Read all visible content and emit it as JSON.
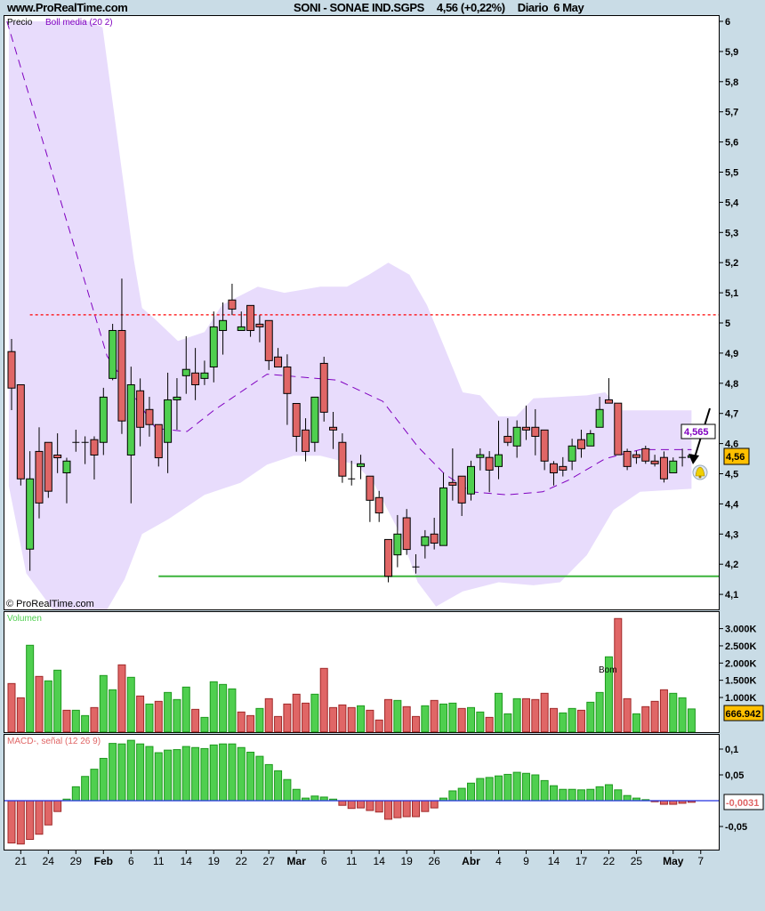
{
  "header": {
    "site": "www.ProRealTime.com",
    "instrument": "SONI - SONAE IND.SGPS",
    "quote": "4,56 (+0,22%)",
    "period": "Diario",
    "date": "6 May"
  },
  "price_pane": {
    "legend_price": "Precio",
    "legend_boll": "Boll media (20 2)",
    "copyright": "© ProRealTime.com",
    "last_price_label": "4,56",
    "boll_value_label": "4,565",
    "annotation": "Bom"
  },
  "volume_pane": {
    "title": "Volumen",
    "last_label": "666.942"
  },
  "macd_pane": {
    "title": "MACD-, señal (12 26 9)",
    "last_label": "-0,0031"
  },
  "colors": {
    "up": "#4fcf4f",
    "down": "#e06666",
    "band": "#e8dcfc",
    "boll_mid": "#8000c0",
    "resistance": "#ff0000",
    "support": "#3cb43c",
    "macd_zero": "#2030e0",
    "background": "#c9dce6",
    "badge": "#ffc000"
  },
  "icons": {
    "alert": "bell-icon",
    "arrow": "arrow-icon"
  },
  "chart_data": [
    {
      "type": "candlestick",
      "ylim": [
        4.05,
        6.02
      ],
      "y_ticks": [
        "6",
        "5,9",
        "5,8",
        "5,7",
        "5,6",
        "5,5",
        "5,4",
        "5,3",
        "5,2",
        "5,1",
        "5",
        "4,9",
        "4,8",
        "4,7",
        "4,6",
        "4,5",
        "4,4",
        "4,3",
        "4,2",
        "4,1"
      ],
      "y_tick_values": [
        6,
        5.9,
        5.8,
        5.7,
        5.6,
        5.5,
        5.4,
        5.3,
        5.2,
        5.1,
        5,
        4.9,
        4.8,
        4.7,
        4.6,
        4.5,
        4.4,
        4.3,
        4.2,
        4.1
      ],
      "x_ticks": [
        {
          "label": "21",
          "bar": 2
        },
        {
          "label": "24",
          "bar": 5
        },
        {
          "label": "29",
          "bar": 8
        },
        {
          "label": "Feb",
          "bar": 11,
          "month": true
        },
        {
          "label": "6",
          "bar": 14
        },
        {
          "label": "11",
          "bar": 17
        },
        {
          "label": "14",
          "bar": 20
        },
        {
          "label": "19",
          "bar": 23
        },
        {
          "label": "22",
          "bar": 26
        },
        {
          "label": "27",
          "bar": 29
        },
        {
          "label": "Mar",
          "bar": 32,
          "month": true
        },
        {
          "label": "6",
          "bar": 35
        },
        {
          "label": "11",
          "bar": 38
        },
        {
          "label": "14",
          "bar": 41
        },
        {
          "label": "19",
          "bar": 44
        },
        {
          "label": "26",
          "bar": 47
        },
        {
          "label": "Abr",
          "bar": 51,
          "month": true
        },
        {
          "label": "4",
          "bar": 54
        },
        {
          "label": "9",
          "bar": 57
        },
        {
          "label": "14",
          "bar": 60
        },
        {
          "label": "17",
          "bar": 63
        },
        {
          "label": "22",
          "bar": 66
        },
        {
          "label": "25",
          "bar": 69
        },
        {
          "label": "May",
          "bar": 73,
          "month": true
        },
        {
          "label": "7",
          "bar": 76
        }
      ],
      "ohlc": [
        [
          4.905,
          4.947,
          4.711,
          4.784
        ],
        [
          4.795,
          4.795,
          4.461,
          4.483
        ],
        [
          4.25,
          4.575,
          4.178,
          4.483
        ],
        [
          4.574,
          4.654,
          4.352,
          4.403
        ],
        [
          4.604,
          4.604,
          4.42,
          4.442
        ],
        [
          4.562,
          4.634,
          4.502,
          4.553
        ],
        [
          4.503,
          4.553,
          4.402,
          4.542
        ],
        [
          4.604,
          4.646,
          4.573,
          4.604
        ],
        [
          4.604,
          4.624,
          4.532,
          4.604
        ],
        [
          4.613,
          4.624,
          4.481,
          4.562
        ],
        [
          4.604,
          4.785,
          4.562,
          4.754
        ],
        [
          4.816,
          4.997,
          4.81,
          4.975
        ],
        [
          4.975,
          5.147,
          4.632,
          4.675
        ],
        [
          4.562,
          4.855,
          4.402,
          4.795
        ],
        [
          4.775,
          4.816,
          4.591,
          4.654
        ],
        [
          4.713,
          4.755,
          4.623,
          4.663
        ],
        [
          4.663,
          4.663,
          4.524,
          4.553
        ],
        [
          4.604,
          4.835,
          4.502,
          4.745
        ],
        [
          4.745,
          4.817,
          4.646,
          4.754
        ],
        [
          4.825,
          4.956,
          4.765,
          4.846
        ],
        [
          4.834,
          4.917,
          4.744,
          4.795
        ],
        [
          4.816,
          4.875,
          4.794,
          4.834
        ],
        [
          4.854,
          5.038,
          4.803,
          4.987
        ],
        [
          4.975,
          5.068,
          4.895,
          5.008
        ],
        [
          5.076,
          5.13,
          5.026,
          5.046
        ],
        [
          4.975,
          5.038,
          4.975,
          4.987
        ],
        [
          5.058,
          5.058,
          4.954,
          4.975
        ],
        [
          4.996,
          5.026,
          4.936,
          4.987
        ],
        [
          5.008,
          5.008,
          4.844,
          4.875
        ],
        [
          4.887,
          4.917,
          4.854,
          4.854
        ],
        [
          4.854,
          4.896,
          4.662,
          4.766
        ],
        [
          4.733,
          4.733,
          4.573,
          4.624
        ],
        [
          4.645,
          4.684,
          4.541,
          4.574
        ],
        [
          4.604,
          4.754,
          4.573,
          4.754
        ],
        [
          4.866,
          4.888,
          4.673,
          4.704
        ],
        [
          4.654,
          4.705,
          4.582,
          4.645
        ],
        [
          4.604,
          4.634,
          4.47,
          4.492
        ],
        [
          4.483,
          4.543,
          4.461,
          4.483
        ],
        [
          4.524,
          4.563,
          4.482,
          4.533
        ],
        [
          4.492,
          4.492,
          4.34,
          4.412
        ],
        [
          4.421,
          4.443,
          4.34,
          4.37
        ],
        [
          4.282,
          4.282,
          4.14,
          4.16
        ],
        [
          4.231,
          4.363,
          4.19,
          4.3
        ],
        [
          4.354,
          4.383,
          4.231,
          4.249
        ],
        [
          4.191,
          4.233,
          4.169,
          4.191
        ],
        [
          4.262,
          4.313,
          4.219,
          4.291
        ],
        [
          4.3,
          4.354,
          4.249,
          4.27
        ],
        [
          4.262,
          4.503,
          4.262,
          4.453
        ],
        [
          4.471,
          4.584,
          4.411,
          4.462
        ],
        [
          4.492,
          4.492,
          4.36,
          4.403
        ],
        [
          4.433,
          4.543,
          4.411,
          4.524
        ],
        [
          4.554,
          4.584,
          4.511,
          4.563
        ],
        [
          4.554,
          4.575,
          4.439,
          4.512
        ],
        [
          4.524,
          4.676,
          4.482,
          4.563
        ],
        [
          4.624,
          4.684,
          4.592,
          4.604
        ],
        [
          4.592,
          4.677,
          4.553,
          4.654
        ],
        [
          4.654,
          4.726,
          4.612,
          4.645
        ],
        [
          4.654,
          4.714,
          4.561,
          4.624
        ],
        [
          4.645,
          4.645,
          4.512,
          4.542
        ],
        [
          4.533,
          4.542,
          4.461,
          4.503
        ],
        [
          4.524,
          4.555,
          4.491,
          4.512
        ],
        [
          4.542,
          4.616,
          4.512,
          4.592
        ],
        [
          4.613,
          4.646,
          4.553,
          4.583
        ],
        [
          4.592,
          4.645,
          4.592,
          4.633
        ],
        [
          4.654,
          4.755,
          4.654,
          4.713
        ],
        [
          4.745,
          4.817,
          4.734,
          4.734
        ],
        [
          4.734,
          4.734,
          4.563,
          4.563
        ],
        [
          4.574,
          4.583,
          4.512,
          4.524
        ],
        [
          4.563,
          4.576,
          4.533,
          4.554
        ],
        [
          4.583,
          4.593,
          4.533,
          4.542
        ],
        [
          4.542,
          4.563,
          4.524,
          4.533
        ],
        [
          4.554,
          4.574,
          4.471,
          4.483
        ],
        [
          4.503,
          4.554,
          4.503,
          4.542
        ],
        [
          4.554,
          4.583,
          4.524,
          4.554
        ],
        [
          4.554,
          4.565,
          4.545,
          4.56
        ]
      ],
      "bollinger": {
        "upper": [
          [
            0.7,
            6.0
          ],
          [
            9.4,
            6.0
          ],
          [
            10.9,
            5.98
          ],
          [
            14.3,
            5.21
          ],
          [
            15.2,
            5.05
          ],
          [
            16.7,
            5.01
          ],
          [
            19.1,
            4.94
          ],
          [
            22,
            4.97
          ],
          [
            23.9,
            5.06
          ],
          [
            27.8,
            5.12
          ],
          [
            30.7,
            5.1
          ],
          [
            34.6,
            5.12
          ],
          [
            37.5,
            5.12
          ],
          [
            39.9,
            5.16
          ],
          [
            42,
            5.2
          ],
          [
            44.3,
            5.16
          ],
          [
            46.2,
            5.06
          ],
          [
            48.1,
            4.92
          ],
          [
            50.1,
            4.77
          ],
          [
            52,
            4.76
          ],
          [
            54,
            4.69
          ],
          [
            55.9,
            4.69
          ],
          [
            57.8,
            4.75
          ],
          [
            63.6,
            4.76
          ],
          [
            65.6,
            4.77
          ],
          [
            67.5,
            4.71
          ],
          [
            75,
            4.71
          ]
        ],
        "lower": [
          [
            0.7,
            4.46
          ],
          [
            2.6,
            4.17
          ],
          [
            5.5,
            4.05
          ],
          [
            11.4,
            4.05
          ],
          [
            13.3,
            4.15
          ],
          [
            15.2,
            4.3
          ],
          [
            18.1,
            4.35
          ],
          [
            22,
            4.43
          ],
          [
            25.9,
            4.47
          ],
          [
            28.8,
            4.53
          ],
          [
            31.7,
            4.56
          ],
          [
            34.6,
            4.56
          ],
          [
            38.5,
            4.53
          ],
          [
            40.4,
            4.47
          ],
          [
            43.3,
            4.3
          ],
          [
            45.2,
            4.14
          ],
          [
            47.2,
            4.06
          ],
          [
            50.1,
            4.11
          ],
          [
            54,
            4.14
          ],
          [
            57.8,
            4.13
          ],
          [
            60.7,
            4.14
          ],
          [
            63.6,
            4.23
          ],
          [
            66.5,
            4.38
          ],
          [
            69.4,
            4.44
          ],
          [
            75,
            4.45
          ]
        ],
        "middle": [
          [
            0.5,
            6.0
          ],
          [
            11.4,
            4.89
          ],
          [
            16.7,
            4.65
          ],
          [
            20.1,
            4.64
          ],
          [
            23,
            4.71
          ],
          [
            28.8,
            4.83
          ],
          [
            32.7,
            4.82
          ],
          [
            36.5,
            4.81
          ],
          [
            41.4,
            4.74
          ],
          [
            45.2,
            4.59
          ],
          [
            48.1,
            4.5
          ],
          [
            51,
            4.44
          ],
          [
            54.9,
            4.43
          ],
          [
            58.8,
            4.44
          ],
          [
            61.7,
            4.48
          ],
          [
            65.6,
            4.55
          ],
          [
            69.4,
            4.58
          ],
          [
            75,
            4.58
          ]
        ]
      },
      "resistance_line": {
        "value": 5.027,
        "from_bar": 3
      },
      "support_line": {
        "value": 4.16,
        "from_bar": 17
      }
    },
    {
      "type": "bar",
      "title": "Volumen",
      "ylim": [
        0,
        3400000
      ],
      "y_ticks": [
        "3.000K",
        "2.500K",
        "2.000K",
        "1.500K",
        "1.000K"
      ],
      "y_tick_values": [
        3000000,
        2500000,
        2000000,
        1500000,
        1000000
      ],
      "values": [
        1405000,
        991000,
        2517000,
        1612000,
        1483000,
        1793000,
        629000,
        629000,
        474000,
        707000,
        1638000,
        1224000,
        1948000,
        1586000,
        1043000,
        810000,
        888000,
        1146000,
        940000,
        1302000,
        655000,
        422000,
        1457000,
        1379000,
        1250000,
        578000,
        474000,
        681000,
        965000,
        448000,
        810000,
        1095000,
        836000,
        1095000,
        1845000,
        707000,
        784000,
        707000,
        759000,
        629000,
        345000,
        940000,
        914000,
        733000,
        448000,
        759000,
        914000,
        810000,
        836000,
        681000,
        707000,
        578000,
        422000,
        1121000,
        526000,
        965000,
        965000,
        940000,
        1121000,
        681000,
        552000,
        681000,
        629000,
        862000,
        1146000,
        2181000,
        3293000,
        965000,
        526000,
        733000,
        888000,
        1224000,
        1121000,
        991000,
        666942
      ],
      "direction": [
        "d",
        "d",
        "u",
        "d",
        "u",
        "u",
        "d",
        "u",
        "u",
        "d",
        "u",
        "u",
        "d",
        "u",
        "d",
        "u",
        "d",
        "u",
        "u",
        "u",
        "d",
        "u",
        "u",
        "u",
        "u",
        "d",
        "d",
        "u",
        "d",
        "d",
        "d",
        "d",
        "d",
        "u",
        "d",
        "d",
        "d",
        "d",
        "u",
        "d",
        "d",
        "d",
        "u",
        "d",
        "d",
        "u",
        "d",
        "u",
        "u",
        "d",
        "u",
        "u",
        "d",
        "u",
        "u",
        "u",
        "d",
        "d",
        "d",
        "d",
        "u",
        "u",
        "d",
        "u",
        "u",
        "u",
        "d",
        "d",
        "u",
        "d",
        "d",
        "d",
        "u",
        "u",
        "u"
      ]
    },
    {
      "type": "bar",
      "title": "MACD-, señal (12 26 9)",
      "ylim": [
        -0.095,
        0.125
      ],
      "y_ticks": [
        "0,1",
        "0,05",
        "-0,05"
      ],
      "y_tick_values": [
        0.1,
        0.05,
        -0.05
      ],
      "values": [
        -0.082,
        -0.084,
        -0.075,
        -0.065,
        -0.047,
        -0.021,
        0.003,
        0.027,
        0.047,
        0.061,
        0.082,
        0.111,
        0.11,
        0.117,
        0.11,
        0.105,
        0.093,
        0.098,
        0.099,
        0.105,
        0.103,
        0.101,
        0.108,
        0.11,
        0.11,
        0.103,
        0.094,
        0.086,
        0.07,
        0.058,
        0.041,
        0.022,
        0.005,
        0.009,
        0.007,
        0.003,
        -0.009,
        -0.015,
        -0.014,
        -0.019,
        -0.022,
        -0.036,
        -0.033,
        -0.031,
        -0.031,
        -0.021,
        -0.014,
        0.005,
        0.019,
        0.024,
        0.034,
        0.043,
        0.045,
        0.048,
        0.051,
        0.055,
        0.053,
        0.05,
        0.039,
        0.029,
        0.022,
        0.022,
        0.021,
        0.022,
        0.027,
        0.031,
        0.021,
        0.01,
        0.005,
        0.002,
        -0.002,
        -0.007,
        -0.007,
        -0.005,
        -0.0031
      ]
    }
  ]
}
